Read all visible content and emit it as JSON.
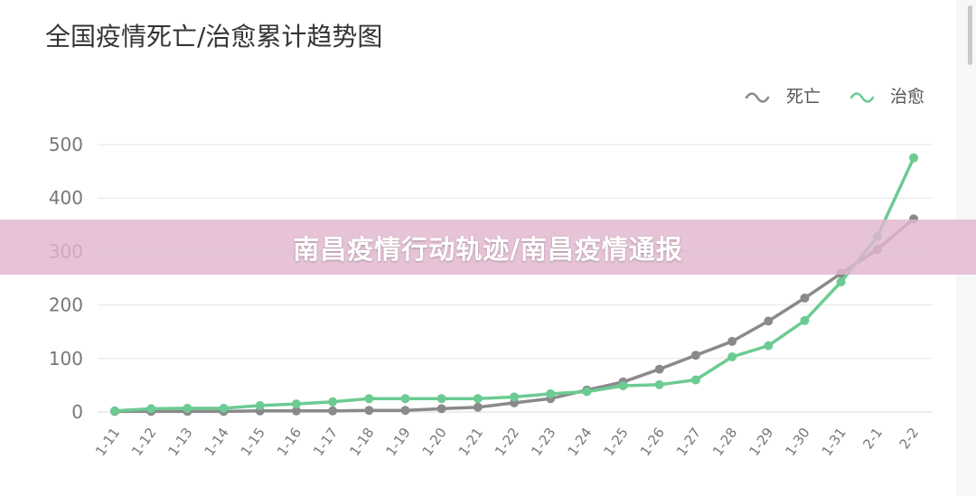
{
  "banner": {
    "text": "南昌疫情行动轨迹/南昌疫情通报"
  },
  "colors": {
    "death": "#8a8a8a",
    "cured": "#6ccb92",
    "grid": "#e6e6e6",
    "axis_text": "#777777",
    "title_text": "#333333"
  },
  "chart_data": {
    "type": "line",
    "title": "全国疫情死亡/治愈累计趋势图",
    "xlabel": "",
    "ylabel": "",
    "ylim": [
      0,
      500
    ],
    "yticks": [
      0,
      100,
      200,
      300,
      400,
      500
    ],
    "grid": true,
    "legend_position": "top-right",
    "categories": [
      "1-11",
      "1-12",
      "1-13",
      "1-14",
      "1-15",
      "1-16",
      "1-17",
      "1-18",
      "1-19",
      "1-20",
      "1-21",
      "1-22",
      "1-23",
      "1-24",
      "1-25",
      "1-26",
      "1-27",
      "1-28",
      "1-29",
      "1-30",
      "1-31",
      "2-1",
      "2-2"
    ],
    "series": [
      {
        "name": "死亡",
        "color": "#8a8a8a",
        "values": [
          1,
          1,
          1,
          1,
          2,
          2,
          2,
          3,
          3,
          6,
          9,
          17,
          25,
          41,
          56,
          80,
          106,
          132,
          170,
          213,
          259,
          304,
          361
        ]
      },
      {
        "name": "治愈",
        "color": "#6ccb92",
        "values": [
          2,
          6,
          7,
          7,
          12,
          15,
          19,
          25,
          25,
          25,
          25,
          28,
          34,
          38,
          49,
          51,
          60,
          103,
          124,
          171,
          243,
          328,
          475
        ]
      }
    ]
  }
}
